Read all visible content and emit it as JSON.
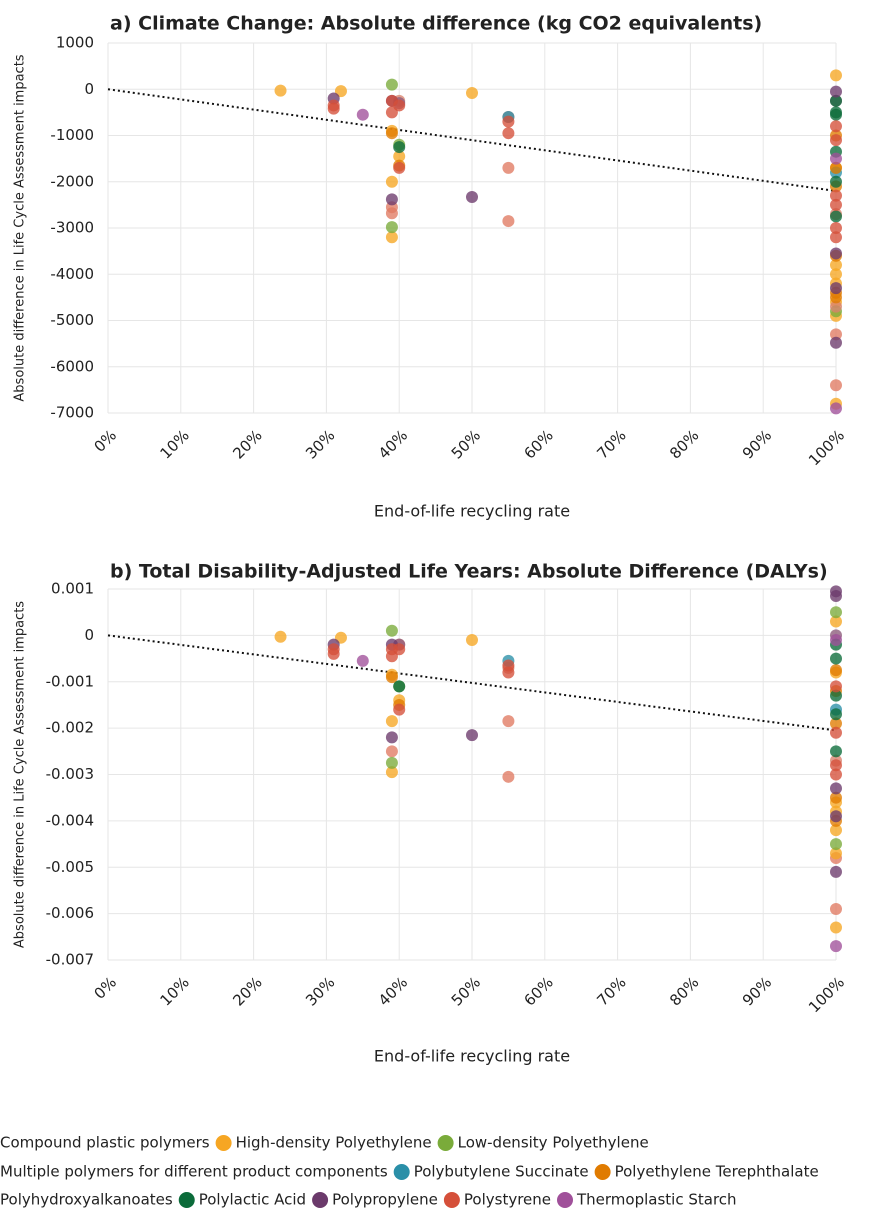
{
  "chart_data": [
    {
      "type": "scatter",
      "title": "a) Climate Change: Absolute difference (kg CO2 equivalents)",
      "xlabel": "End-of-life recycling rate",
      "ylabel": "Absolute difference in Life Cycle Assessment impacts",
      "xlim": [
        0,
        100
      ],
      "ylim": [
        -7000,
        1000
      ],
      "grid": true,
      "xticks": [
        {
          "value": 0,
          "label": "0%"
        },
        {
          "value": 10,
          "label": "10%"
        },
        {
          "value": 20,
          "label": "20%"
        },
        {
          "value": 30,
          "label": "30%"
        },
        {
          "value": 40,
          "label": "40%"
        },
        {
          "value": 50,
          "label": "50%"
        },
        {
          "value": 60,
          "label": "60%"
        },
        {
          "value": 70,
          "label": "70%"
        },
        {
          "value": 80,
          "label": "80%"
        },
        {
          "value": 90,
          "label": "90%"
        },
        {
          "value": 100,
          "label": "100%"
        }
      ],
      "yticks": [
        1000,
        0,
        -1000,
        -2000,
        -3000,
        -4000,
        -5000,
        -6000,
        -7000
      ],
      "trendline": {
        "x": [
          0,
          100
        ],
        "y": [
          0,
          -2200
        ]
      },
      "series": [
        {
          "name": "Compound plastic polymers",
          "color": "#e07a62",
          "x": [
            39,
            39,
            55,
            55,
            100,
            100
          ],
          "y": [
            -2680,
            -2550,
            -1700,
            -2850,
            -5300,
            -6400
          ]
        },
        {
          "name": "High-density Polyethylene",
          "color": "#f6a623",
          "x": [
            23.7,
            32,
            39,
            39,
            39,
            40,
            50,
            100,
            100,
            100,
            100,
            100,
            100,
            100,
            100
          ],
          "y": [
            -30,
            -40,
            -900,
            -2000,
            -3200,
            -1450,
            -80,
            300,
            -1700,
            -3800,
            -4000,
            -4200,
            -4600,
            -4900,
            -6800
          ]
        },
        {
          "name": "Low-density Polyethylene",
          "color": "#7aab3a",
          "x": [
            39,
            39,
            40,
            100
          ],
          "y": [
            100,
            -2980,
            -1200,
            -4800
          ]
        },
        {
          "name": "Multiple polymers for different product components",
          "color": "#d8826c",
          "x": [
            40,
            55,
            100,
            100
          ],
          "y": [
            -250,
            -600,
            -2700,
            -4700
          ]
        },
        {
          "name": "Polybutylene Succinate",
          "color": "#2a8fa8",
          "x": [
            55,
            100
          ],
          "y": [
            -600,
            -1800
          ]
        },
        {
          "name": "Polyethylene Terephthalate",
          "color": "#e07b00",
          "x": [
            39,
            40,
            100,
            100,
            100,
            100,
            100,
            100
          ],
          "y": [
            -950,
            -1650,
            -1000,
            -1700,
            -2100,
            -3600,
            -4400,
            -4500
          ]
        },
        {
          "name": "Polyhydroxyalkanoates",
          "color": "#8c5a7a",
          "x": [
            40,
            100
          ],
          "y": [
            -300,
            -250
          ]
        },
        {
          "name": "Polylactic Acid",
          "color": "#0b6b3a",
          "x": [
            40,
            100,
            100,
            100,
            100,
            100,
            100
          ],
          "y": [
            -1250,
            -250,
            -500,
            -1350,
            -2000,
            -2750,
            -550
          ]
        },
        {
          "name": "Polypropylene",
          "color": "#6b3a6b",
          "x": [
            31,
            39,
            39,
            50,
            100,
            100,
            100,
            100
          ],
          "y": [
            -200,
            -250,
            -2380,
            -2330,
            -50,
            -3550,
            -4300,
            -5480
          ]
        },
        {
          "name": "Polystyrene",
          "color": "#d5503a",
          "x": [
            31,
            31,
            39,
            39,
            40,
            40,
            55,
            55,
            100,
            100,
            100,
            100,
            100,
            100
          ],
          "y": [
            -350,
            -420,
            -250,
            -500,
            -350,
            -1700,
            -700,
            -950,
            -800,
            -1100,
            -2300,
            -2500,
            -3000,
            -3200
          ]
        },
        {
          "name": "Thermoplastic Starch",
          "color": "#a0509a",
          "x": [
            35,
            100,
            100
          ],
          "y": [
            -550,
            -1500,
            -6900
          ]
        }
      ]
    },
    {
      "type": "scatter",
      "title": "b) Total Disability-Adjusted Life Years: Absolute Difference (DALYs)",
      "xlabel": "End-of-life recycling rate",
      "ylabel": "Absolute difference in Life Cycle Assessment impacts",
      "xlim": [
        0,
        100
      ],
      "ylim": [
        -0.007,
        0.001
      ],
      "grid": true,
      "xticks": [
        {
          "value": 0,
          "label": "0%"
        },
        {
          "value": 10,
          "label": "10%"
        },
        {
          "value": 20,
          "label": "20%"
        },
        {
          "value": 30,
          "label": "30%"
        },
        {
          "value": 40,
          "label": "40%"
        },
        {
          "value": 50,
          "label": "50%"
        },
        {
          "value": 60,
          "label": "60%"
        },
        {
          "value": 70,
          "label": "70%"
        },
        {
          "value": 80,
          "label": "80%"
        },
        {
          "value": 90,
          "label": "90%"
        },
        {
          "value": 100,
          "label": "100%"
        }
      ],
      "yticks": [
        0.001,
        0,
        -0.001,
        -0.002,
        -0.003,
        -0.004,
        -0.005,
        -0.006,
        -0.007
      ],
      "trendline": {
        "x": [
          0,
          100
        ],
        "y": [
          0,
          -0.00205
        ]
      },
      "series": [
        {
          "color": "#e07a62",
          "x": [
            39,
            55,
            55,
            100,
            100
          ],
          "y": [
            -0.0025,
            -0.00185,
            -0.00305,
            -0.0048,
            -0.0059
          ]
        },
        {
          "color": "#f6a623",
          "x": [
            23.7,
            32,
            39,
            39,
            39,
            40,
            50,
            100,
            100,
            100,
            100,
            100,
            100,
            100
          ],
          "y": [
            -3e-05,
            -5e-05,
            -0.00085,
            -0.00185,
            -0.00295,
            -0.0014,
            -0.0001,
            0.0003,
            -0.0008,
            -0.0036,
            -0.0038,
            -0.0042,
            -0.0047,
            -0.0063
          ]
        },
        {
          "color": "#7aab3a",
          "x": [
            39,
            39,
            40,
            100,
            100
          ],
          "y": [
            0.0001,
            -0.00275,
            -0.0011,
            0.0005,
            -0.0045
          ]
        },
        {
          "color": "#d8826c",
          "x": [
            40,
            55,
            100
          ],
          "y": [
            -0.0002,
            -0.0007,
            -0.0027
          ]
        },
        {
          "color": "#2a8fa8",
          "x": [
            55,
            100
          ],
          "y": [
            -0.00055,
            -0.0016
          ]
        },
        {
          "color": "#e07b00",
          "x": [
            39,
            40,
            100,
            100,
            100,
            100,
            100
          ],
          "y": [
            -0.0009,
            -0.0015,
            -0.00075,
            -0.0012,
            -0.0019,
            -0.0035,
            -0.004
          ]
        },
        {
          "color": "#8c5a7a",
          "x": [
            40,
            100
          ],
          "y": [
            -0.0002,
            0
          ]
        },
        {
          "color": "#0b6b3a",
          "x": [
            40,
            100,
            100,
            100,
            100,
            100
          ],
          "y": [
            -0.0011,
            -0.0002,
            -0.0005,
            -0.0013,
            -0.0017,
            -0.0025
          ]
        },
        {
          "color": "#6b3a6b",
          "x": [
            31,
            39,
            39,
            50,
            100,
            100,
            100,
            100,
            100
          ],
          "y": [
            -0.0002,
            -0.0002,
            -0.0022,
            -0.00215,
            0.00095,
            0.00085,
            -0.0033,
            -0.0039,
            -0.0051
          ]
        },
        {
          "color": "#d5503a",
          "x": [
            31,
            31,
            39,
            39,
            40,
            40,
            55,
            55,
            100,
            100,
            100,
            100
          ],
          "y": [
            -0.0003,
            -0.0004,
            -0.0003,
            -0.00045,
            -0.0003,
            -0.0016,
            -0.00065,
            -0.0008,
            -0.0011,
            -0.0021,
            -0.0028,
            -0.003
          ]
        },
        {
          "color": "#a0509a",
          "x": [
            35,
            100,
            100
          ],
          "y": [
            -0.00055,
            -0.0001,
            -0.0067
          ]
        }
      ]
    }
  ]
}
